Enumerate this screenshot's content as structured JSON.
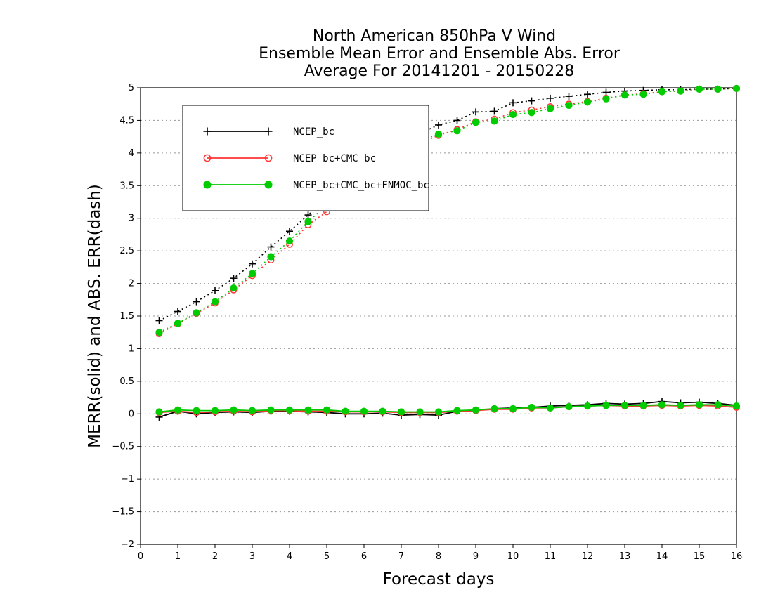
{
  "chart_data": {
    "type": "line",
    "title_lines": [
      "North American 850hPa V Wind",
      "Ensemble Mean Error and Ensemble Abs. Error",
      "Average For 20141201 - 20150228"
    ],
    "xlabel": "Forecast days",
    "ylabel": "MERR(solid) and ABS. ERR(dash)",
    "xlim": [
      0,
      16
    ],
    "ylim": [
      -2,
      5
    ],
    "x_ticks": [
      "0",
      "1",
      "2",
      "3",
      "4",
      "5",
      "6",
      "7",
      "8",
      "9",
      "10",
      "11",
      "12",
      "13",
      "14",
      "15",
      "16"
    ],
    "y_ticks": [
      "−2",
      "−1.5",
      "−1",
      "−0.5",
      "0",
      "0.5",
      "1",
      "1.5",
      "2",
      "2.5",
      "3",
      "3.5",
      "4",
      "4.5",
      "5"
    ],
    "grid": "horizontal dotted",
    "legend_position": "top-left",
    "x": [
      0.5,
      1,
      1.5,
      2,
      2.5,
      3,
      3.5,
      4,
      4.5,
      5,
      5.5,
      6,
      6.5,
      7,
      7.5,
      8,
      8.5,
      9,
      9.5,
      10,
      10.5,
      11,
      11.5,
      12,
      12.5,
      13,
      13.5,
      14,
      14.5,
      15,
      15.5,
      16
    ],
    "series": [
      {
        "name": "NCEP_bc",
        "color": "#000000",
        "marker": "plus",
        "merr": [
          -0.05,
          0.04,
          0.0,
          0.02,
          0.03,
          0.02,
          0.04,
          0.04,
          0.03,
          0.02,
          0.0,
          0.0,
          0.01,
          -0.02,
          -0.01,
          -0.02,
          0.04,
          0.05,
          0.08,
          0.09,
          0.1,
          0.12,
          0.13,
          0.14,
          0.16,
          0.15,
          0.16,
          0.19,
          0.17,
          0.18,
          0.16,
          0.13
        ],
        "abs_err": [
          1.43,
          1.57,
          1.72,
          1.89,
          2.08,
          2.3,
          2.56,
          2.8,
          3.05,
          3.3,
          3.55,
          3.78,
          3.98,
          4.15,
          4.3,
          4.43,
          4.5,
          4.63,
          4.64,
          4.77,
          4.8,
          4.84,
          4.87,
          4.9,
          4.93,
          4.95,
          4.96,
          4.97,
          4.97,
          4.98,
          4.98,
          4.99
        ]
      },
      {
        "name": "NCEP_bc+CMC_bc",
        "color": "#ff3333",
        "marker": "open-circle",
        "merr": [
          0.02,
          0.04,
          0.02,
          0.03,
          0.04,
          0.03,
          0.05,
          0.05,
          0.04,
          0.04,
          0.03,
          0.03,
          0.03,
          0.02,
          0.02,
          0.02,
          0.04,
          0.05,
          0.07,
          0.07,
          0.09,
          0.09,
          0.11,
          0.12,
          0.13,
          0.12,
          0.12,
          0.13,
          0.12,
          0.13,
          0.12,
          0.1
        ],
        "abs_err": [
          1.23,
          1.38,
          1.54,
          1.7,
          1.9,
          2.12,
          2.36,
          2.6,
          2.9,
          3.1,
          3.4,
          3.65,
          3.85,
          4.05,
          4.15,
          4.27,
          4.36,
          4.48,
          4.52,
          4.62,
          4.66,
          4.71,
          4.75,
          4.79,
          4.84,
          4.89,
          4.91,
          4.94,
          4.95,
          4.98,
          4.98,
          4.99
        ]
      },
      {
        "name": "NCEP_bc+CMC_bc+FNMOC_bc",
        "color": "#00cc00",
        "marker": "filled-circle",
        "merr": [
          0.03,
          0.06,
          0.05,
          0.05,
          0.06,
          0.05,
          0.06,
          0.06,
          0.06,
          0.06,
          0.04,
          0.04,
          0.04,
          0.03,
          0.03,
          0.03,
          0.05,
          0.06,
          0.08,
          0.08,
          0.1,
          0.09,
          0.11,
          0.12,
          0.13,
          0.13,
          0.13,
          0.14,
          0.13,
          0.14,
          0.14,
          0.12
        ],
        "abs_err": [
          1.25,
          1.39,
          1.55,
          1.72,
          1.93,
          2.15,
          2.41,
          2.65,
          2.95,
          3.2,
          3.45,
          3.7,
          3.9,
          4.07,
          4.18,
          4.29,
          4.34,
          4.47,
          4.49,
          4.59,
          4.62,
          4.68,
          4.73,
          4.78,
          4.83,
          4.89,
          4.9,
          4.94,
          4.95,
          4.98,
          4.98,
          4.99
        ]
      }
    ]
  }
}
